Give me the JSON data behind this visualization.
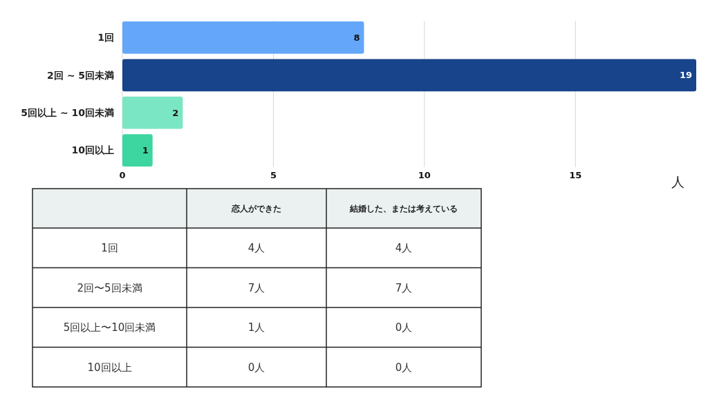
{
  "chart_data": [
    {
      "type": "bar",
      "orientation": "horizontal",
      "categories": [
        "1回",
        "2回 ~ 5回未満",
        "5回以上 ~ 10回未満",
        "10回以上"
      ],
      "values": [
        8,
        19,
        2,
        1
      ],
      "colors": [
        "#64a7fa",
        "#17448a",
        "#7be6c4",
        "#3dd6a0"
      ],
      "xlim": [
        0,
        19
      ],
      "xticks": [
        0,
        5,
        10,
        15
      ],
      "xlabel": "人",
      "grid": "x",
      "data_labels": true
    },
    {
      "type": "other",
      "categories": [
        "1回",
        "2回〜5回未満",
        "5回以上〜10回未満",
        "10回以上"
      ],
      "series": [
        {
          "name": "恋人ができた",
          "values": [
            4,
            7,
            1,
            0
          ],
          "value_labels": [
            "4人",
            "7人",
            "1人",
            "0人"
          ]
        },
        {
          "name": "結婚した、または考えている",
          "values": [
            4,
            7,
            0,
            0
          ],
          "value_labels": [
            "4人",
            "7人",
            "0人",
            "0人"
          ]
        }
      ]
    }
  ]
}
